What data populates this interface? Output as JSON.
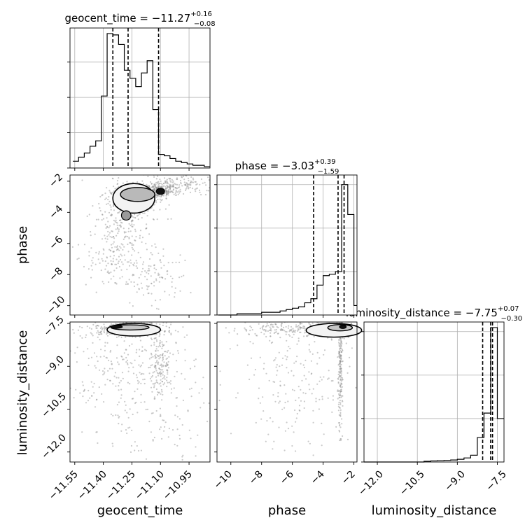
{
  "chart_data": [
    {
      "type": "histogram",
      "panel": "geocent_time_1d",
      "title": {
        "name": "geocent_time",
        "value": "−11.27",
        "upper": "+0.16",
        "lower": "−0.08"
      },
      "xlim": [
        -11.575,
        -10.84
      ],
      "bin_edges": [
        -11.56,
        -11.53,
        -11.5,
        -11.47,
        -11.44,
        -11.41,
        -11.38,
        -11.35,
        -11.32,
        -11.29,
        -11.26,
        -11.23,
        -11.2,
        -11.17,
        -11.14,
        -11.11,
        -11.08,
        -11.05,
        -11.02,
        -10.99,
        -10.96,
        -10.93,
        -10.9,
        -10.87,
        -10.84
      ],
      "density": [
        0.05,
        0.08,
        0.11,
        0.16,
        0.2,
        0.53,
        0.99,
        0.98,
        0.91,
        0.72,
        0.66,
        0.6,
        0.7,
        0.79,
        0.43,
        0.1,
        0.09,
        0.07,
        0.05,
        0.04,
        0.03,
        0.02,
        0.02,
        0.01
      ],
      "quantiles": [
        -11.35,
        -11.27,
        -11.11
      ],
      "grid": true
    },
    {
      "type": "scatter",
      "panel": "phase_vs_geocent_time",
      "xlabel": "",
      "ylabel": "phase",
      "xlim": [
        -11.575,
        -10.84
      ],
      "ylim": [
        -10.6,
        -1.6
      ],
      "yticks": [
        "−10",
        "−8",
        "−6",
        "−4",
        "−2"
      ],
      "contour_regions": [
        {
          "level": "outer",
          "center": [
            -11.26,
            -3.4
          ]
        },
        {
          "level": "peak",
          "center": [
            -11.1,
            -2.7
          ]
        },
        {
          "level": "secondary",
          "center": [
            -11.28,
            -4.2
          ]
        }
      ]
    },
    {
      "type": "histogram",
      "panel": "phase_1d",
      "title": {
        "name": "phase",
        "value": "−3.03",
        "upper": "+0.39",
        "lower": "−1.59"
      },
      "xlim": [
        -10.9,
        -1.8
      ],
      "bin_edges": [
        -10.8,
        -10.4,
        -10.0,
        -9.6,
        -9.2,
        -8.8,
        -8.4,
        -8.0,
        -7.6,
        -7.2,
        -6.8,
        -6.4,
        -6.0,
        -5.6,
        -5.2,
        -4.8,
        -4.4,
        -4.0,
        -3.6,
        -3.2,
        -2.8,
        -2.4,
        -2.0,
        -1.8
      ],
      "density": [
        0.0,
        0.0,
        0.0,
        0.01,
        0.01,
        0.01,
        0.01,
        0.02,
        0.02,
        0.02,
        0.03,
        0.04,
        0.05,
        0.06,
        0.09,
        0.12,
        0.22,
        0.29,
        0.3,
        0.32,
        0.96,
        0.74,
        0.07
      ],
      "quantiles": [
        -4.62,
        -3.03,
        -2.64
      ],
      "grid": true
    },
    {
      "type": "scatter",
      "panel": "luminosity_distance_vs_geocent_time",
      "ylabel": "luminosity_distance",
      "xlabel": "geocent_time",
      "xlim": [
        -11.575,
        -10.84
      ],
      "ylim": [
        -12.35,
        -7.45
      ],
      "xticks": [
        "−11.55",
        "−11.40",
        "−11.25",
        "−11.10",
        "−10.95"
      ],
      "yticks": [
        "−12.0",
        "−10.5",
        "−9.0",
        "−7.5"
      ],
      "contour_regions": [
        {
          "level": "outer",
          "center": [
            -11.24,
            -7.7
          ]
        },
        {
          "level": "peak",
          "center": [
            -11.32,
            -7.62
          ]
        }
      ]
    },
    {
      "type": "scatter",
      "panel": "luminosity_distance_vs_phase",
      "xlabel": "phase",
      "xlim": [
        -10.9,
        -1.8
      ],
      "ylim": [
        -12.35,
        -7.45
      ],
      "xticks": [
        "−10",
        "−8",
        "−6",
        "−4",
        "−2"
      ],
      "contour_regions": [
        {
          "level": "outer",
          "center": [
            -3.5,
            -7.7
          ]
        },
        {
          "level": "peak",
          "center": [
            -2.7,
            -7.62
          ]
        }
      ]
    },
    {
      "type": "histogram",
      "panel": "luminosity_distance_1d",
      "title": {
        "name": "luminosity_distance",
        "value": "−7.75",
        "upper": "+0.07",
        "lower": "−0.30"
      },
      "xlabel": "luminosity_distance",
      "xlim": [
        -12.5,
        -7.25
      ],
      "xticks": [
        "−12.0",
        "−10.5",
        "−9.0",
        "−7.5"
      ],
      "bin_edges": [
        -12.5,
        -12.25,
        -12.0,
        -11.75,
        -11.5,
        -11.25,
        -11.0,
        -10.75,
        -10.5,
        -10.25,
        -10.0,
        -9.75,
        -9.5,
        -9.25,
        -9.0,
        -8.75,
        -8.5,
        -8.25,
        -8.0,
        -7.75,
        -7.5,
        -7.25
      ],
      "density": [
        0.0,
        0.0,
        0.0,
        0.0,
        0.0,
        0.0,
        0.0,
        0.0,
        0.0,
        0.005,
        0.008,
        0.01,
        0.012,
        0.015,
        0.02,
        0.03,
        0.05,
        0.18,
        0.36,
        0.99,
        0.32
      ],
      "quantiles": [
        -8.05,
        -7.75,
        -7.68
      ],
      "grid": true
    }
  ]
}
